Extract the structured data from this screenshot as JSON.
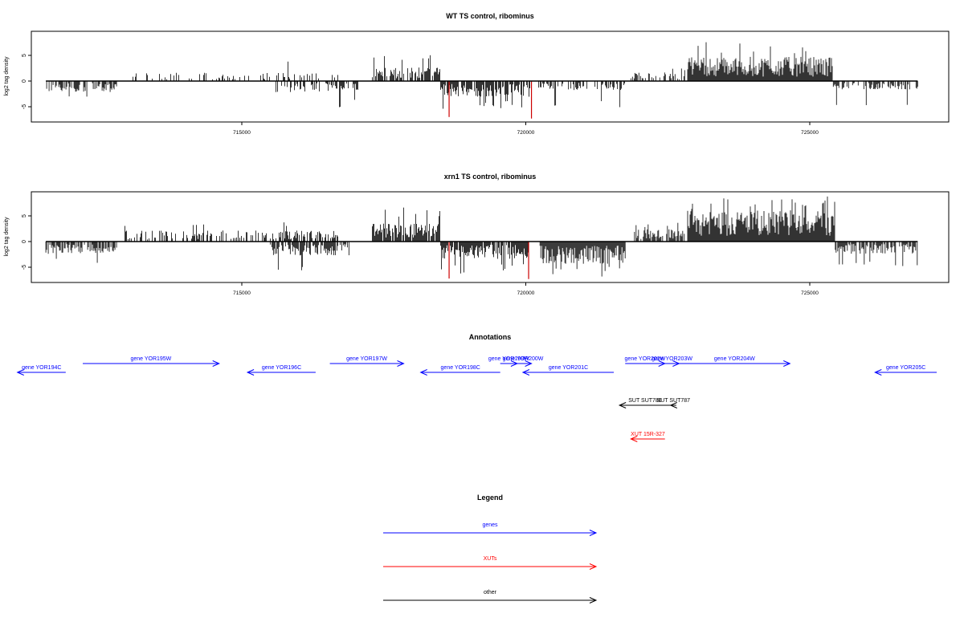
{
  "chart_data": [
    {
      "type": "bar",
      "title": "WT TS control, ribominus",
      "ylabel": "log2 tag density",
      "xlim": [
        711000,
        728000
      ],
      "ylim": [
        -8,
        10
      ],
      "yticks": [
        -5,
        0,
        5
      ],
      "xticks": [
        715000,
        720000,
        725000
      ],
      "baseline": 0,
      "bar_color": "#000000",
      "highlight_color": "#cc0000",
      "segments": [
        {
          "start": 711550,
          "end": 712800,
          "strand": "-",
          "mean": 1.6,
          "max": 3.8,
          "density": 0.55
        },
        {
          "start": 712900,
          "end": 716700,
          "strand": "+",
          "mean": 1.2,
          "max": 4.3,
          "density": 0.22
        },
        {
          "start": 715600,
          "end": 717050,
          "strand": "-",
          "mean": 1.6,
          "max": 5.2,
          "density": 0.5
        },
        {
          "start": 717300,
          "end": 718500,
          "strand": "+",
          "mean": 2.0,
          "max": 5.8,
          "density": 0.75
        },
        {
          "start": 718500,
          "end": 720100,
          "strand": "-",
          "mean": 2.3,
          "max": 5.5,
          "density": 0.85
        },
        {
          "start": 720200,
          "end": 721750,
          "strand": "-",
          "mean": 1.3,
          "max": 5.2,
          "density": 0.4
        },
        {
          "start": 721850,
          "end": 722800,
          "strand": "+",
          "mean": 1.3,
          "max": 2.5,
          "density": 0.45
        },
        {
          "start": 722850,
          "end": 725400,
          "strand": "+",
          "mean": 3.5,
          "max": 7.6,
          "density": 1.0
        },
        {
          "start": 725400,
          "end": 726900,
          "strand": "-",
          "mean": 1.2,
          "max": 4.8,
          "density": 0.55
        }
      ],
      "highlights": [
        {
          "x": 718650,
          "value": -7.0
        },
        {
          "x": 720100,
          "value": -7.3
        }
      ]
    },
    {
      "type": "bar",
      "title": "xrn1 TS control, ribominus",
      "ylabel": "log2 tag density",
      "xlim": [
        711000,
        728000
      ],
      "ylim": [
        -8,
        10
      ],
      "yticks": [
        -5,
        0,
        5
      ],
      "xticks": [
        715000,
        720000,
        725000
      ],
      "baseline": 0,
      "bar_color": "#000000",
      "highlight_color": "#cc0000",
      "segments": [
        {
          "start": 711550,
          "end": 712800,
          "strand": "-",
          "mean": 1.8,
          "max": 4.2,
          "density": 0.7
        },
        {
          "start": 712900,
          "end": 716700,
          "strand": "+",
          "mean": 1.6,
          "max": 3.9,
          "density": 0.45
        },
        {
          "start": 715500,
          "end": 716900,
          "strand": "-",
          "mean": 2.0,
          "max": 6.2,
          "density": 0.8
        },
        {
          "start": 717300,
          "end": 718500,
          "strand": "+",
          "mean": 2.6,
          "max": 6.8,
          "density": 0.9
        },
        {
          "start": 718500,
          "end": 720050,
          "strand": "-",
          "mean": 2.5,
          "max": 6.3,
          "density": 0.9
        },
        {
          "start": 720250,
          "end": 721750,
          "strand": "-",
          "mean": 3.2,
          "max": 7.0,
          "density": 1.0
        },
        {
          "start": 721900,
          "end": 722800,
          "strand": "+",
          "mean": 1.8,
          "max": 3.8,
          "density": 0.7
        },
        {
          "start": 722850,
          "end": 725450,
          "strand": "+",
          "mean": 4.5,
          "max": 8.8,
          "density": 1.0
        },
        {
          "start": 725450,
          "end": 726900,
          "strand": "-",
          "mean": 1.8,
          "max": 5.2,
          "density": 0.75
        }
      ],
      "highlights": [
        {
          "x": 718650,
          "value": -7.2
        },
        {
          "x": 720050,
          "value": -7.3
        }
      ]
    }
  ],
  "annotations": {
    "title": "Annotations",
    "xlim": [
      711000,
      728000
    ],
    "features": [
      {
        "label": "gene YOR194C",
        "start": 711050,
        "end": 711900,
        "strand": "-",
        "row": 1,
        "color": "#0000ff"
      },
      {
        "label": "gene YOR195W",
        "start": 712200,
        "end": 714600,
        "strand": "+",
        "row": 0,
        "color": "#0000ff"
      },
      {
        "label": "gene YOR196C",
        "start": 715100,
        "end": 716300,
        "strand": "-",
        "row": 1,
        "color": "#0000ff"
      },
      {
        "label": "gene YOR197W",
        "start": 716550,
        "end": 717850,
        "strand": "+",
        "row": 0,
        "color": "#0000ff"
      },
      {
        "label": "gene YOR198C",
        "start": 718150,
        "end": 719550,
        "strand": "-",
        "row": 1,
        "color": "#0000ff"
      },
      {
        "label": "gene YOR199W",
        "start": 719550,
        "end": 719850,
        "strand": "+",
        "row": 0,
        "color": "#0000ff"
      },
      {
        "label": "gene YOR200W",
        "start": 719800,
        "end": 720100,
        "strand": "+",
        "row": 0,
        "color": "#0000ff"
      },
      {
        "label": "gene YOR201C",
        "start": 719950,
        "end": 721550,
        "strand": "-",
        "row": 1,
        "color": "#0000ff"
      },
      {
        "label": "gene YOR202W",
        "start": 721750,
        "end": 722450,
        "strand": "+",
        "row": 0,
        "color": "#0000ff"
      },
      {
        "label": "gene YOR203W",
        "start": 722450,
        "end": 722700,
        "strand": "+",
        "row": 0,
        "color": "#0000ff"
      },
      {
        "label": "gene YOR204W",
        "start": 722700,
        "end": 724650,
        "strand": "+",
        "row": 0,
        "color": "#0000ff"
      },
      {
        "label": "gene YOR205C",
        "start": 726150,
        "end": 727800,
        "strand": "-",
        "row": 1,
        "color": "#0000ff"
      },
      {
        "label": "SUT SUT786",
        "start": 721650,
        "end": 722550,
        "strand": "-",
        "row": 2,
        "color": "#000000"
      },
      {
        "label": "SUT SUT787",
        "start": 722550,
        "end": 722650,
        "strand": "-",
        "row": 2,
        "color": "#000000"
      },
      {
        "label": "XUT 15R-327",
        "start": 721850,
        "end": 722450,
        "strand": "-",
        "row": 3,
        "color": "#ff0000"
      }
    ]
  },
  "legend": {
    "title": "Legend",
    "items": [
      {
        "label": "genes",
        "color": "#0000ff"
      },
      {
        "label": "XUTs",
        "color": "#ff0000"
      },
      {
        "label": "other",
        "color": "#000000"
      }
    ]
  }
}
